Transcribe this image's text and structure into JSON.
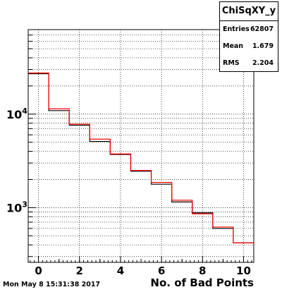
{
  "stats_box": {
    "title": "ChiSqXY_y",
    "rows": [
      {
        "key": "Entries",
        "value": "62807"
      },
      {
        "key": "Mean",
        "value": "1.679"
      },
      {
        "key": "RMS",
        "value": "2.204"
      }
    ]
  },
  "footer": {
    "timestamp": "Mon May  8 15:31:38 2017"
  },
  "chart_data": {
    "type": "histogram",
    "title": "",
    "xlabel": "No. of Bad Points",
    "ylabel": "",
    "xlim": [
      -0.5,
      10.5
    ],
    "ylim": [
      260,
      80000
    ],
    "yscale": "log",
    "grid": true,
    "x_ticks": [
      "0",
      "2",
      "4",
      "6",
      "8",
      "10"
    ],
    "y_ticks": [
      "10^3",
      "10^4"
    ],
    "bin_edges": [
      -0.5,
      0.5,
      1.5,
      2.5,
      3.5,
      4.5,
      5.5,
      6.5,
      7.5,
      8.5,
      9.5,
      10.5
    ],
    "series": [
      {
        "color": "#000000",
        "values": [
          27000,
          10900,
          7600,
          5100,
          3700,
          2450,
          1780,
          1150,
          880,
          600,
          420
        ]
      },
      {
        "color": "#ff0000",
        "values": [
          27500,
          11400,
          7800,
          5400,
          3750,
          2500,
          1860,
          1200,
          860,
          620,
          420
        ]
      }
    ]
  }
}
